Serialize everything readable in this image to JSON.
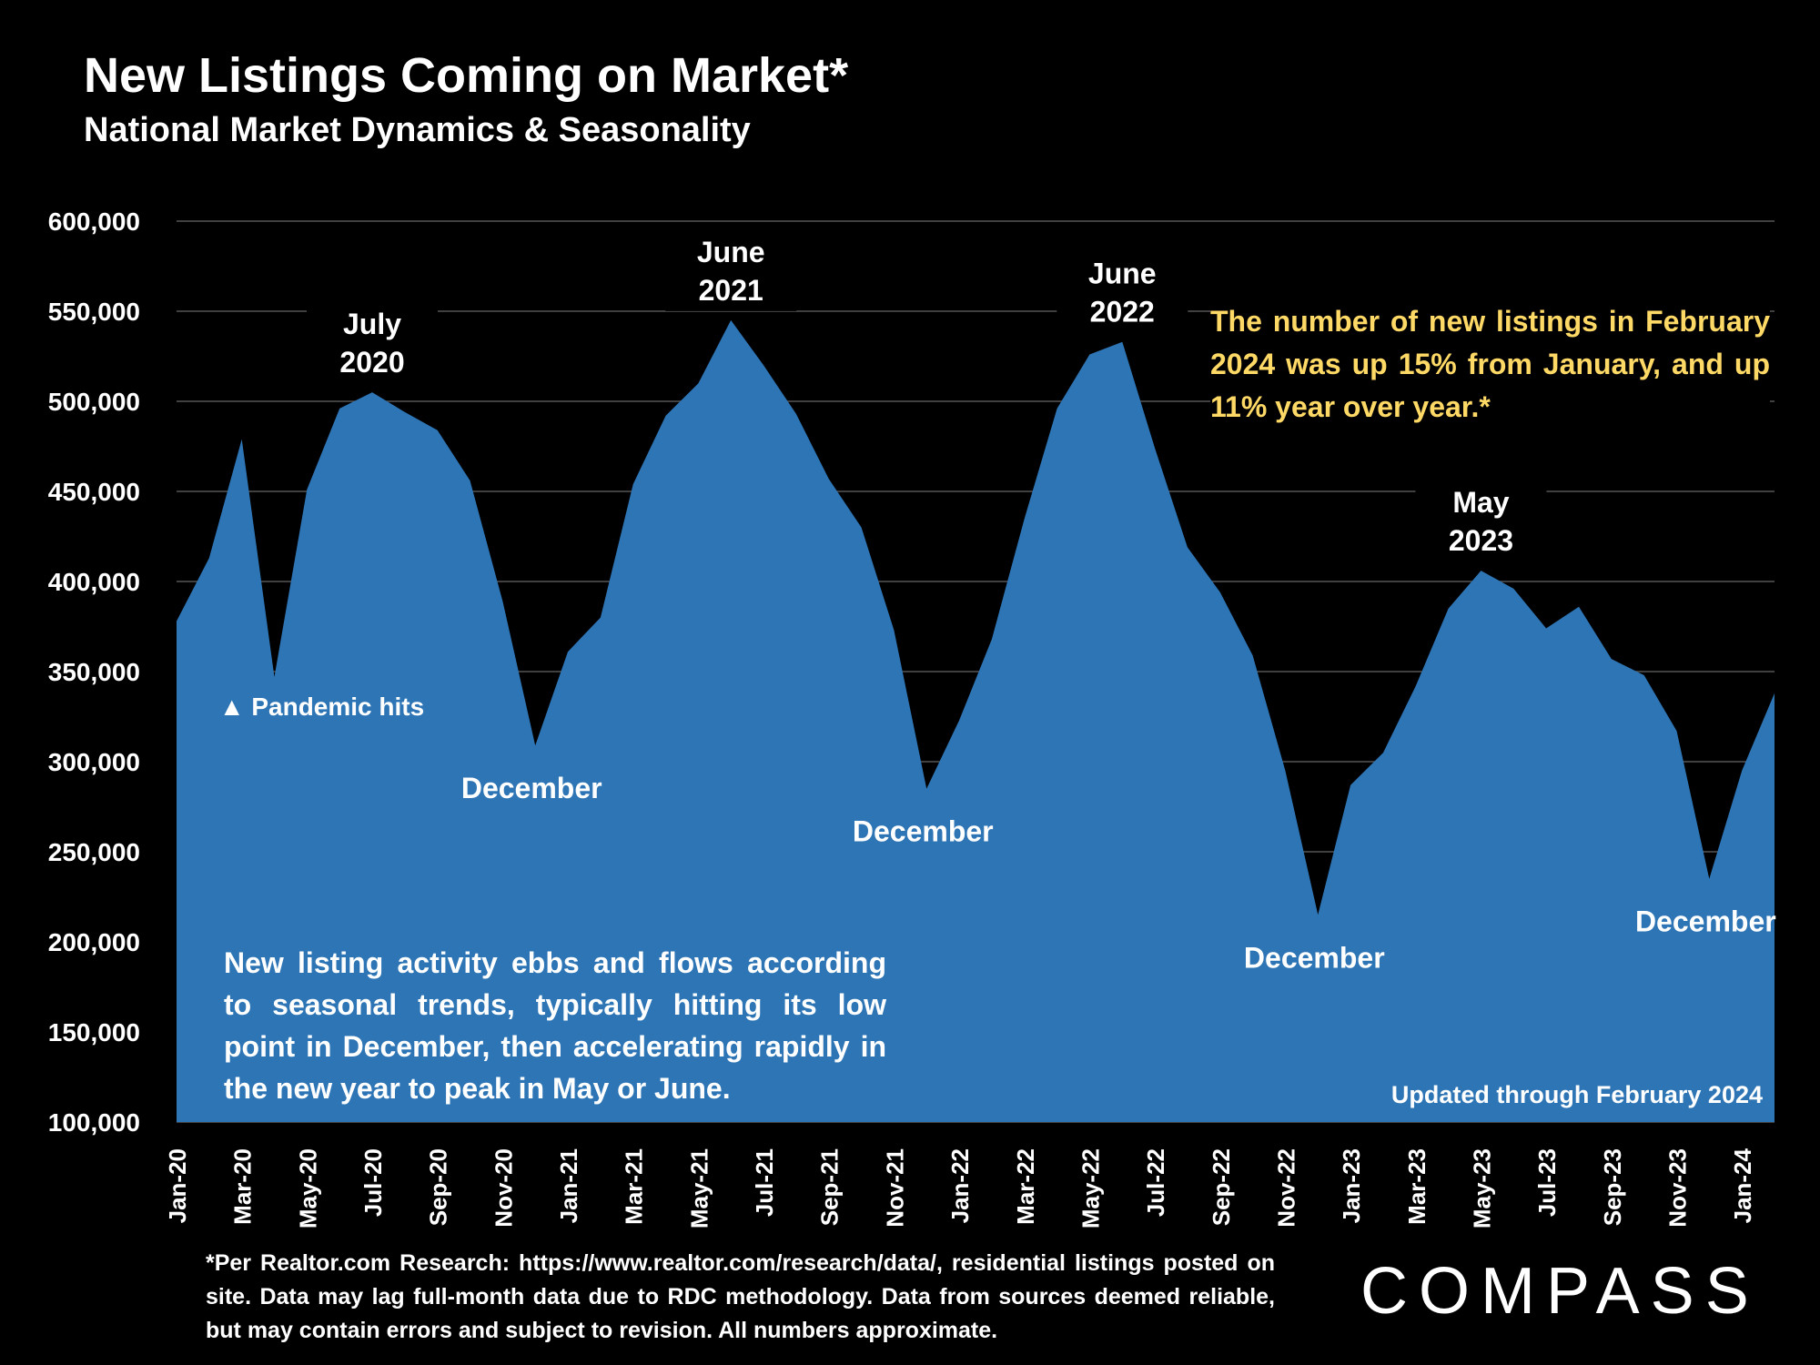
{
  "header": {
    "title": "New Listings Coming on Market*",
    "subtitle": "National Market Dynamics & Seasonality"
  },
  "chart_data": {
    "type": "area",
    "title": "New Listings Coming on Market*",
    "subtitle": "National Market Dynamics & Seasonality",
    "xlabel": "",
    "ylabel": "",
    "ylim": [
      100000,
      600000
    ],
    "yticks": [
      "100,000",
      "150,000",
      "200,000",
      "250,000",
      "300,000",
      "350,000",
      "400,000",
      "450,000",
      "500,000",
      "550,000",
      "600,000"
    ],
    "xtick_labels": [
      "Jan-20",
      "Mar-20",
      "May-20",
      "Jul-20",
      "Sep-20",
      "Nov-20",
      "Jan-21",
      "Mar-21",
      "May-21",
      "Jul-21",
      "Sep-21",
      "Nov-21",
      "Jan-22",
      "Mar-22",
      "May-22",
      "Jul-22",
      "Sep-22",
      "Nov-22",
      "Jan-23",
      "Mar-23",
      "May-23",
      "Jul-23",
      "Sep-23",
      "Nov-23",
      "Jan-24"
    ],
    "grid": true,
    "color": "#2E75B6",
    "categories": [
      "Jan-20",
      "Feb-20",
      "Mar-20",
      "Apr-20",
      "May-20",
      "Jun-20",
      "Jul-20",
      "Aug-20",
      "Sep-20",
      "Oct-20",
      "Nov-20",
      "Dec-20",
      "Jan-21",
      "Feb-21",
      "Mar-21",
      "Apr-21",
      "May-21",
      "Jun-21",
      "Jul-21",
      "Aug-21",
      "Sep-21",
      "Oct-21",
      "Nov-21",
      "Dec-21",
      "Jan-22",
      "Feb-22",
      "Mar-22",
      "Apr-22",
      "May-22",
      "Jun-22",
      "Jul-22",
      "Aug-22",
      "Sep-22",
      "Oct-22",
      "Nov-22",
      "Dec-22",
      "Jan-23",
      "Feb-23",
      "Mar-23",
      "Apr-23",
      "May-23",
      "Jun-23",
      "Jul-23",
      "Aug-23",
      "Sep-23",
      "Oct-23",
      "Nov-23",
      "Dec-23",
      "Jan-24",
      "Feb-24"
    ],
    "values": [
      378000,
      413000,
      479000,
      347000,
      451000,
      496000,
      505000,
      494000,
      484000,
      456000,
      389000,
      309000,
      361000,
      380000,
      454000,
      492000,
      510000,
      545000,
      520000,
      493000,
      457000,
      430000,
      373000,
      285000,
      323000,
      368000,
      435000,
      496000,
      526000,
      533000,
      474000,
      419000,
      394000,
      359000,
      295000,
      215000,
      287000,
      305000,
      342000,
      385000,
      406000,
      396000,
      374000,
      386000,
      357000,
      348000,
      317000,
      235000,
      295000,
      338000
    ],
    "annotations": [
      {
        "month": "Jul-20",
        "text": "July\n2020",
        "position": "above"
      },
      {
        "month": "Jun-21",
        "text": "June\n2021",
        "position": "above"
      },
      {
        "month": "Jun-22",
        "text": "June\n2022",
        "position": "above"
      },
      {
        "month": "May-23",
        "text": "May\n2023",
        "position": "above"
      },
      {
        "month": "Apr-20",
        "text": "▲ Pandemic hits",
        "position": "below"
      },
      {
        "month": "Dec-20",
        "text": "December",
        "position": "below"
      },
      {
        "month": "Dec-21",
        "text": "December",
        "position": "below"
      },
      {
        "month": "Dec-22",
        "text": "December",
        "position": "below"
      },
      {
        "month": "Dec-23",
        "text": "December",
        "position": "below"
      }
    ],
    "callout": "The number of new listings in February 2024 was up 15% from January, and up 11% year over year.*",
    "description": "New listing activity ebbs and flows according to seasonal trends, typically hitting its low point in December, then accelerating rapidly in the new year to peak in May or June.",
    "updated_note": "Updated through February 2024"
  },
  "footer": {
    "footnote": "*Per Realtor.com Research: https://www.realtor.com/research/data/, residential listings posted on site. Data may lag full-month data due to RDC methodology. Data from sources deemed reliable, but may contain errors and subject to revision. All numbers approximate.",
    "logo": "COMPASS"
  }
}
